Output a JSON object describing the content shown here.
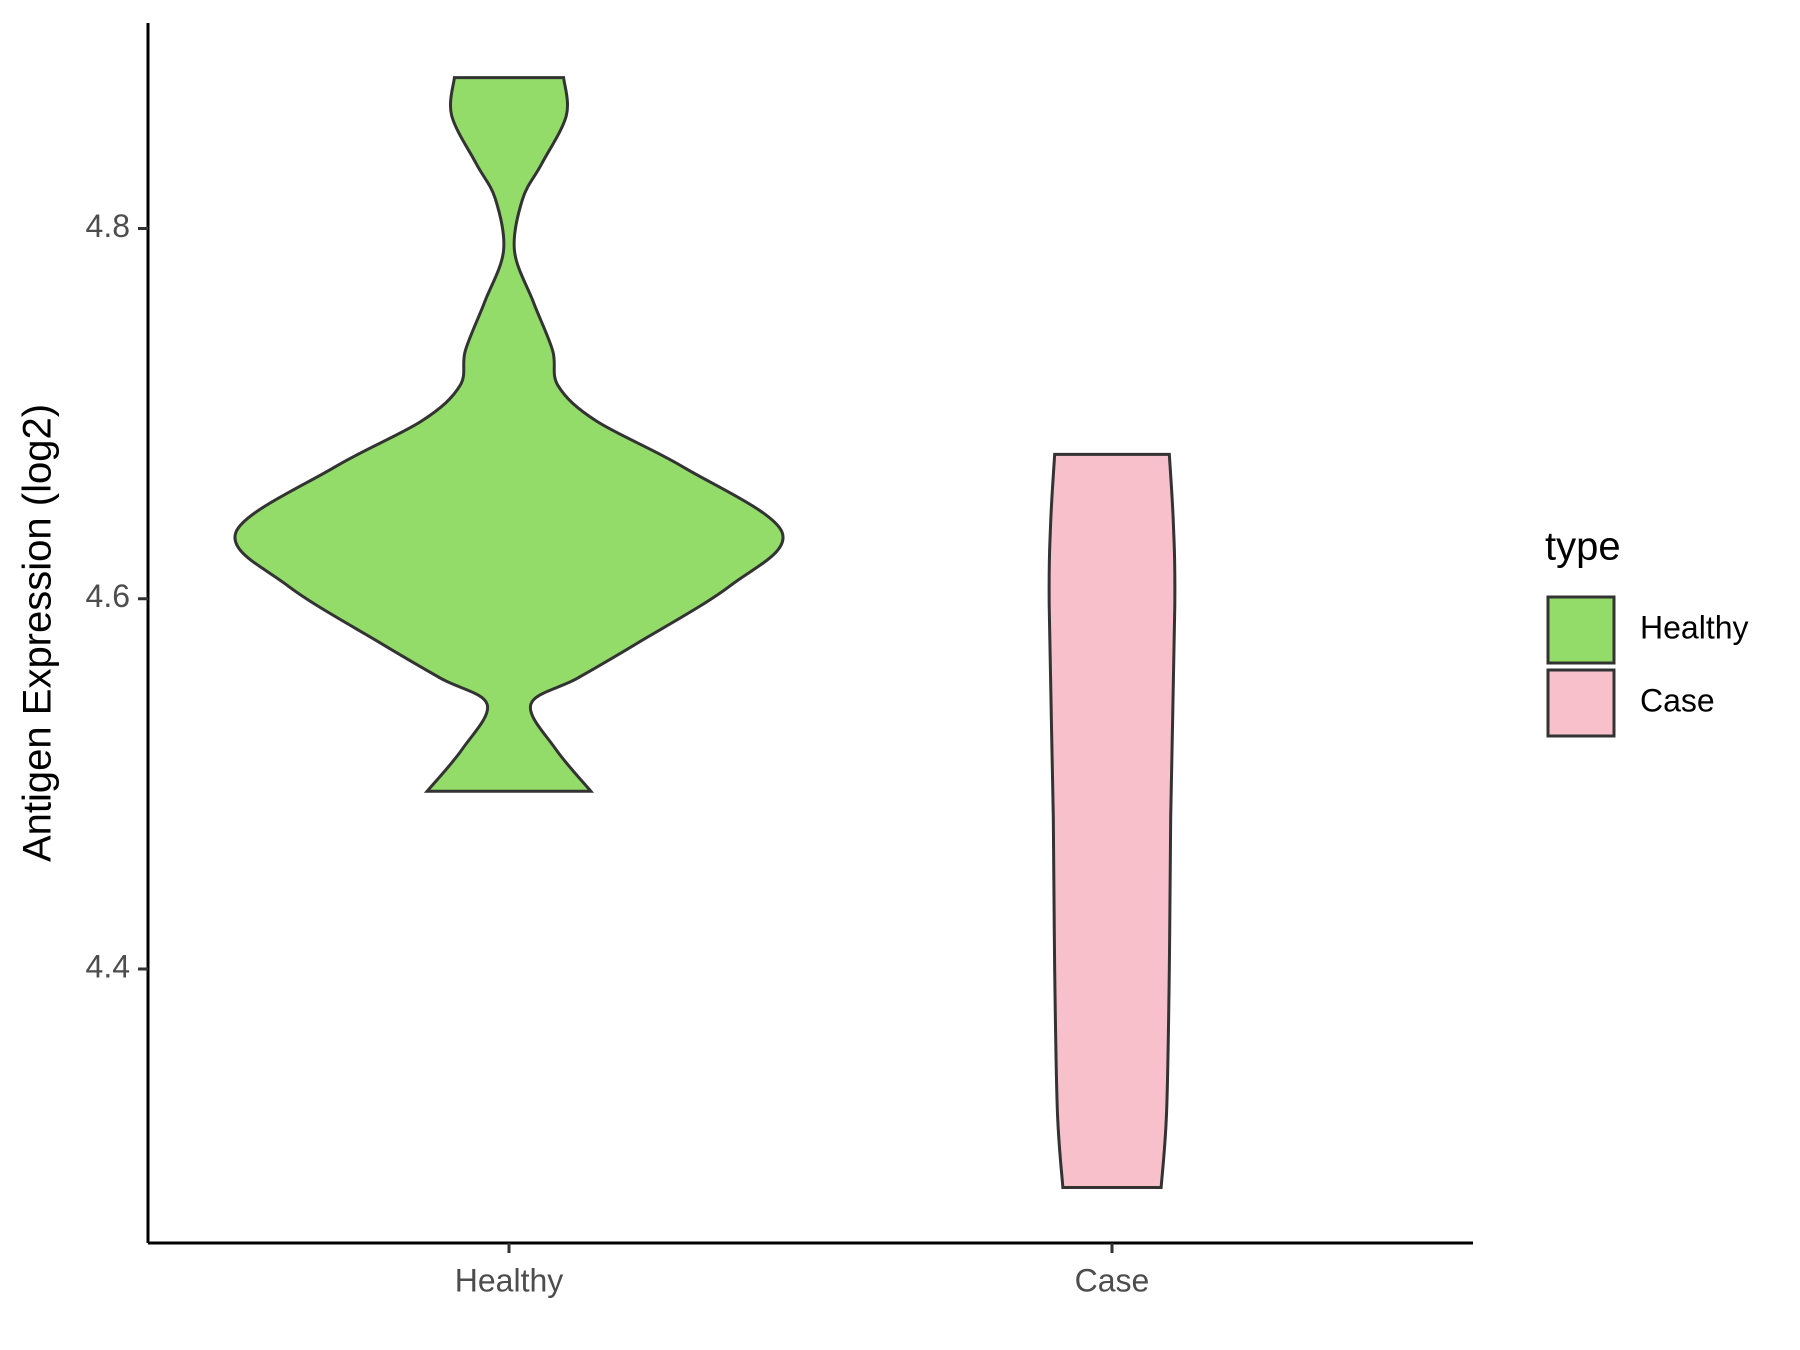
{
  "chart_data": {
    "type": "violin",
    "y_label": "Antigen Expression (log2)",
    "legend_title": "type",
    "categories": [
      "Healthy",
      "Case"
    ],
    "ylim": [
      4.252,
      4.911
    ],
    "yticks": [
      4.4,
      4.6,
      4.8
    ],
    "legend": "right",
    "series": [
      {
        "name": "Healthy",
        "color": "#93dc6a",
        "y": [
          4.8815,
          4.861,
          4.835,
          4.816,
          4.788,
          4.76,
          4.734,
          4.715,
          4.696,
          4.671,
          4.636,
          4.607,
          4.576,
          4.557,
          4.543,
          4.519,
          4.496
        ],
        "density": [
          0.2,
          0.21,
          0.12,
          0.05,
          0.02,
          0.09,
          0.16,
          0.18,
          0.32,
          0.64,
          1.0,
          0.81,
          0.47,
          0.25,
          0.08,
          0.17,
          0.3
        ]
      },
      {
        "name": "Case",
        "color": "#f7c0cb",
        "y": [
          4.678,
          4.64,
          4.596,
          4.482,
          4.4,
          4.323,
          4.282
        ],
        "density": [
          0.21,
          0.225,
          0.23,
          0.215,
          0.21,
          0.2,
          0.18
        ]
      }
    ]
  }
}
